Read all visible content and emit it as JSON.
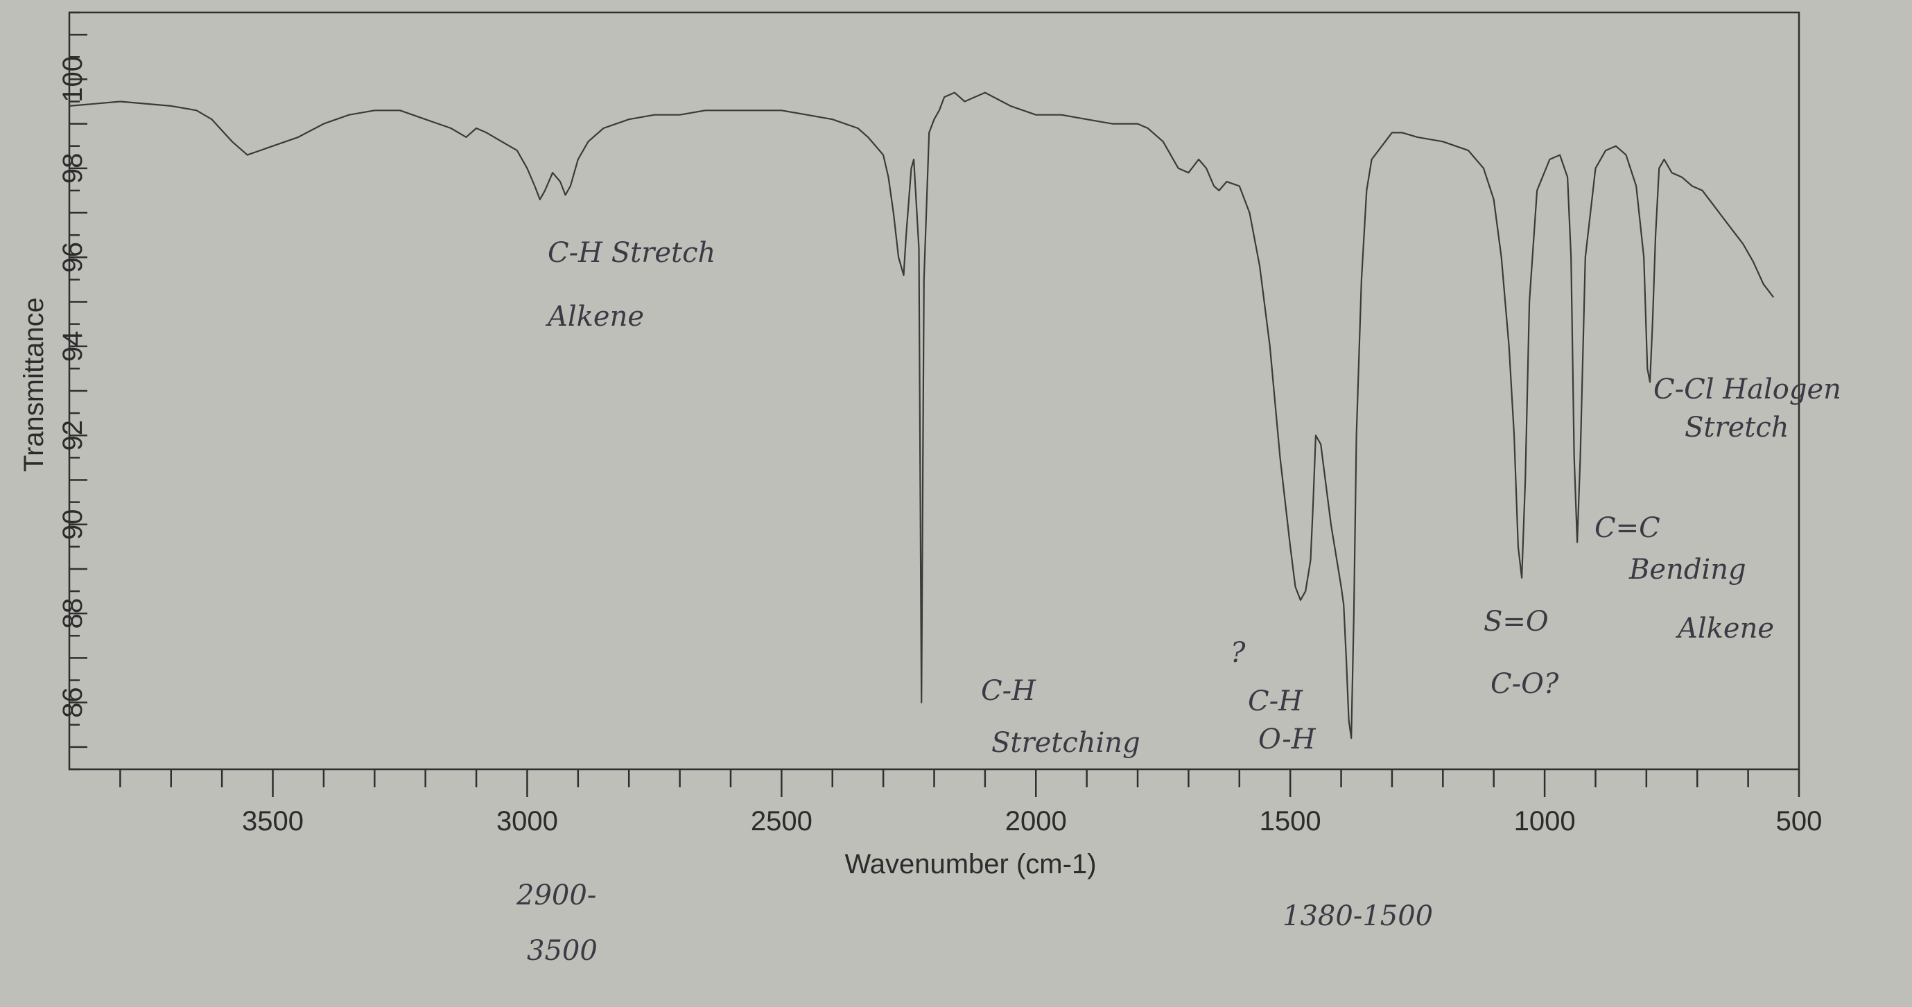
{
  "chart_data": {
    "type": "line",
    "xlabel": "Wavenumber (cm-1)",
    "ylabel": "Transmittance",
    "x_reversed": true,
    "xlim": [
      3900,
      500
    ],
    "ylim": [
      84.5,
      101.5
    ],
    "x_ticks": [
      "3500",
      "3000",
      "2500",
      "2000",
      "1500",
      "1000",
      "500"
    ],
    "x_tick_values": [
      3500,
      3000,
      2500,
      2000,
      1500,
      1000,
      500
    ],
    "y_ticks": [
      "86",
      "88",
      "90",
      "92",
      "94",
      "96",
      "98",
      "100"
    ],
    "y_tick_values": [
      86,
      88,
      90,
      92,
      94,
      96,
      98,
      100
    ],
    "grid": false,
    "series": [
      {
        "x": [
          3900,
          3800,
          3700,
          3650,
          3620,
          3580,
          3550,
          3500,
          3450,
          3400,
          3350,
          3300,
          3250,
          3200,
          3150,
          3120,
          3100,
          3080,
          3050,
          3020,
          3000,
          2985,
          2975,
          2965,
          2950,
          2935,
          2925,
          2915,
          2900,
          2880,
          2850,
          2800,
          2750,
          2700,
          2650,
          2600,
          2500,
          2450,
          2400,
          2350,
          2330,
          2300,
          2290,
          2280,
          2270,
          2260,
          2255,
          2245,
          2240,
          2230,
          2225,
          2220,
          2210,
          2200,
          2190,
          2180,
          2160,
          2140,
          2100,
          2050,
          2000,
          1950,
          1900,
          1850,
          1800,
          1780,
          1770,
          1750,
          1735,
          1720,
          1700,
          1680,
          1665,
          1650,
          1640,
          1625,
          1600,
          1580,
          1560,
          1540,
          1520,
          1500,
          1490,
          1480,
          1470,
          1460,
          1455,
          1450,
          1440,
          1420,
          1400,
          1395,
          1390,
          1385,
          1380,
          1375,
          1370,
          1360,
          1350,
          1340,
          1320,
          1300,
          1280,
          1250,
          1200,
          1150,
          1120,
          1100,
          1085,
          1070,
          1060,
          1052,
          1045,
          1038,
          1030,
          1015,
          990,
          970,
          955,
          948,
          942,
          936,
          930,
          920,
          900,
          880,
          860,
          840,
          820,
          805,
          798,
          793,
          788,
          782,
          775,
          765,
          750,
          730,
          710,
          690,
          670,
          650,
          630,
          610,
          590,
          570,
          550
        ],
        "y": [
          99.4,
          99.5,
          99.4,
          99.3,
          99.1,
          98.6,
          98.3,
          98.5,
          98.7,
          99.0,
          99.2,
          99.3,
          99.3,
          99.1,
          98.9,
          98.7,
          98.9,
          98.8,
          98.6,
          98.4,
          98.0,
          97.6,
          97.3,
          97.5,
          97.9,
          97.7,
          97.4,
          97.6,
          98.2,
          98.6,
          98.9,
          99.1,
          99.2,
          99.2,
          99.3,
          99.3,
          99.3,
          99.2,
          99.1,
          98.9,
          98.7,
          98.3,
          97.8,
          97.0,
          96.0,
          95.6,
          96.5,
          98.0,
          98.2,
          96.2,
          86.0,
          95.5,
          98.8,
          99.1,
          99.3,
          99.6,
          99.7,
          99.5,
          99.7,
          99.4,
          99.2,
          99.2,
          99.1,
          99.0,
          99.0,
          98.9,
          98.8,
          98.6,
          98.3,
          98.0,
          97.9,
          98.2,
          98.0,
          97.6,
          97.5,
          97.7,
          97.6,
          97.0,
          95.8,
          94.0,
          91.5,
          89.5,
          88.6,
          88.3,
          88.5,
          89.2,
          90.5,
          92.0,
          91.8,
          90.0,
          88.6,
          88.2,
          87.0,
          85.6,
          85.2,
          88.0,
          92.0,
          95.5,
          97.5,
          98.2,
          98.5,
          98.8,
          98.8,
          98.7,
          98.6,
          98.4,
          98.0,
          97.3,
          96.0,
          94.0,
          92.0,
          89.5,
          88.8,
          91.0,
          95.0,
          97.5,
          98.2,
          98.3,
          97.8,
          96.0,
          91.5,
          89.6,
          91.5,
          96.0,
          98.0,
          98.4,
          98.5,
          98.3,
          97.6,
          96.0,
          93.5,
          93.2,
          94.5,
          96.5,
          98.0,
          98.2,
          97.9,
          97.8,
          97.6,
          97.5,
          97.2,
          96.9,
          96.6,
          96.3,
          95.9,
          95.4,
          95.1
        ]
      }
    ]
  },
  "annotations": {
    "ch_stretch_alkene_line1": "C-H Stretch",
    "ch_stretch_alkene_line2": "Alkene",
    "ch_stretching_line1": "C-H",
    "ch_stretching_line2": "Stretching",
    "ch_oh_question": "?",
    "ch_oh_line1": "C-H",
    "ch_oh_line2": "O-H",
    "so_co_line1": "S=O",
    "so_co_line2": "C-O?",
    "cc_bending_line1": "C=C",
    "cc_bending_line2": "Bending",
    "cc_bending_line3": "Alkene",
    "ccl_halogen_line1": "C-Cl Halogen",
    "ccl_halogen_line2": "Stretch",
    "range_2900_line1": "2900-",
    "range_2900_line2": "3500",
    "range_1380": "1380-1500"
  }
}
